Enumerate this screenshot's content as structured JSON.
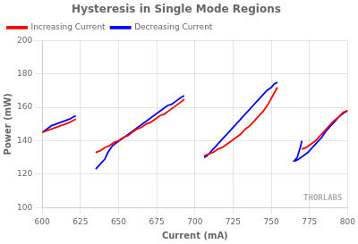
{
  "chart_data": {
    "type": "line",
    "title": "Hysteresis in Single Mode Regions",
    "x_label": "Current (mA)",
    "y_label": "Power (mW)",
    "xlim": [
      600,
      800
    ],
    "ylim": [
      100,
      200
    ],
    "xticks": [
      600,
      625,
      650,
      675,
      700,
      725,
      750,
      775,
      800
    ],
    "yticks": [
      100,
      120,
      140,
      160,
      180,
      200
    ],
    "grid": true,
    "legend": "upper left",
    "annotations": [
      {
        "text": "THORLABS",
        "color": "#b0b0b0"
      }
    ],
    "series": [
      {
        "name": "Increasing Current",
        "color": "#ff0000",
        "x": [
          600,
          603,
          606,
          609,
          612,
          615,
          618,
          620,
          622,
          null,
          635,
          638,
          641,
          644,
          647,
          650,
          653,
          656,
          659,
          662,
          665,
          668,
          671,
          674,
          677,
          680,
          683,
          686,
          689,
          692,
          693,
          null,
          706,
          709,
          712,
          715,
          718,
          721,
          724,
          727,
          730,
          733,
          736,
          739,
          742,
          745,
          748,
          751,
          754,
          null,
          770,
          773,
          776,
          779,
          782,
          785,
          788,
          791,
          794,
          797,
          800
        ],
        "values": [
          145,
          146,
          147,
          148,
          149,
          150,
          151,
          152,
          153,
          null,
          133,
          134,
          136,
          137,
          139,
          140,
          142,
          143,
          145,
          147,
          148,
          150,
          151,
          153,
          155,
          156,
          158,
          160,
          162,
          164,
          165,
          null,
          131,
          132,
          133,
          135,
          136,
          138,
          140,
          142,
          144,
          147,
          149,
          152,
          155,
          158,
          162,
          167,
          172,
          null,
          135,
          136,
          138,
          140,
          143,
          146,
          149,
          152,
          154,
          157,
          158
        ]
      },
      {
        "name": "Decreasing Current",
        "color": "#0000ff",
        "x": [
          622,
          620,
          618,
          615,
          612,
          609,
          606,
          603,
          600,
          null,
          693,
          691,
          688,
          685,
          682,
          679,
          676,
          673,
          670,
          667,
          664,
          661,
          658,
          655,
          652,
          649,
          646,
          643,
          641,
          638,
          636,
          635,
          null,
          754,
          752,
          750,
          747,
          744,
          741,
          738,
          735,
          732,
          729,
          726,
          723,
          720,
          717,
          714,
          711,
          708,
          706,
          null,
          770,
          769,
          768,
          767,
          766,
          765,
          766,
          768,
          771,
          774,
          777,
          780,
          783,
          786,
          789,
          792,
          795,
          798,
          800
        ],
        "values": [
          155,
          154,
          153,
          152,
          151,
          150,
          149,
          147,
          145,
          null,
          167,
          166,
          164,
          162,
          161,
          159,
          157,
          155,
          153,
          151,
          149,
          147,
          145,
          143,
          141,
          139,
          137,
          133,
          129,
          126,
          124,
          123,
          null,
          175,
          174,
          172,
          170,
          167,
          164,
          161,
          158,
          155,
          152,
          149,
          146,
          143,
          140,
          137,
          134,
          131,
          130,
          null,
          140,
          136,
          133,
          130,
          129,
          128,
          128,
          129,
          131,
          133,
          136,
          139,
          142,
          146,
          149,
          152,
          155,
          157,
          158
        ]
      }
    ]
  }
}
